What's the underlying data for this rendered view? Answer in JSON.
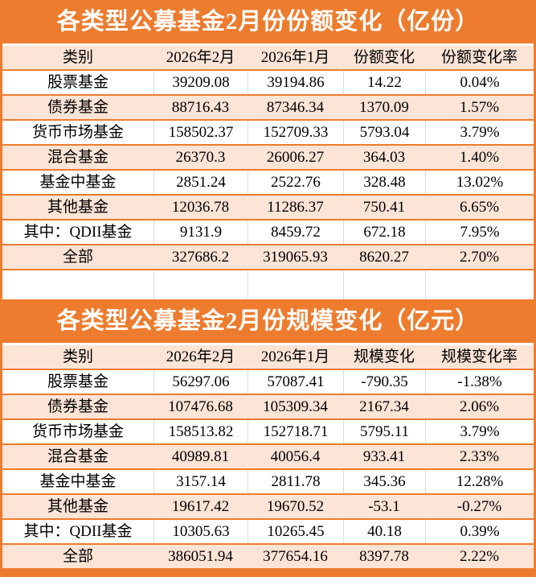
{
  "style": {
    "banner_bg": "#ED7C2F",
    "banner_text": "#FFFFFF",
    "row_alt_bg": "#FCE4D6",
    "row_bg": "#FFFFFF",
    "separator_line": "#ED7C2F",
    "column_divider": "#DCDCDC",
    "text_color": "#000000"
  },
  "chart_data": [
    {
      "type": "table",
      "title": "各类型公募基金2月份份额变化（亿份）",
      "columns": [
        "类别",
        "2026年2月",
        "2026年1月",
        "份额变化",
        "份额变化率"
      ],
      "rows": [
        [
          "股票基金",
          "39209.08",
          "39194.86",
          "14.22",
          "0.04%"
        ],
        [
          "债券基金",
          "88716.43",
          "87346.34",
          "1370.09",
          "1.57%"
        ],
        [
          "货币市场基金",
          "158502.37",
          "152709.33",
          "5793.04",
          "3.79%"
        ],
        [
          "混合基金",
          "26370.3",
          "26006.27",
          "364.03",
          "1.40%"
        ],
        [
          "基金中基金",
          "2851.24",
          "2522.76",
          "328.48",
          "13.02%"
        ],
        [
          "其他基金",
          "12036.78",
          "11286.37",
          "750.41",
          "6.65%"
        ],
        [
          "其中：QDII基金",
          "9131.9",
          "8459.72",
          "672.18",
          "7.95%"
        ],
        [
          "全部",
          "327686.2",
          "319065.93",
          "8620.27",
          "2.70%"
        ]
      ]
    },
    {
      "type": "table",
      "title": "各类型公募基金2月份规模变化（亿元）",
      "columns": [
        "类别",
        "2026年2月",
        "2026年1月",
        "规模变化",
        "规模变化率"
      ],
      "rows": [
        [
          "股票基金",
          "56297.06",
          "57087.41",
          "-790.35",
          "-1.38%"
        ],
        [
          "债券基金",
          "107476.68",
          "105309.34",
          "2167.34",
          "2.06%"
        ],
        [
          "货币市场基金",
          "158513.82",
          "152718.71",
          "5795.11",
          "3.79%"
        ],
        [
          "混合基金",
          "40989.81",
          "40056.4",
          "933.41",
          "2.33%"
        ],
        [
          "基金中基金",
          "3157.14",
          "2811.78",
          "345.36",
          "12.28%"
        ],
        [
          "其他基金",
          "19617.42",
          "19670.52",
          "-53.1",
          "-0.27%"
        ],
        [
          "其中：QDII基金",
          "10305.63",
          "10265.45",
          "40.18",
          "0.39%"
        ],
        [
          "全部",
          "386051.94",
          "377654.16",
          "8397.78",
          "2.22%"
        ]
      ]
    }
  ]
}
